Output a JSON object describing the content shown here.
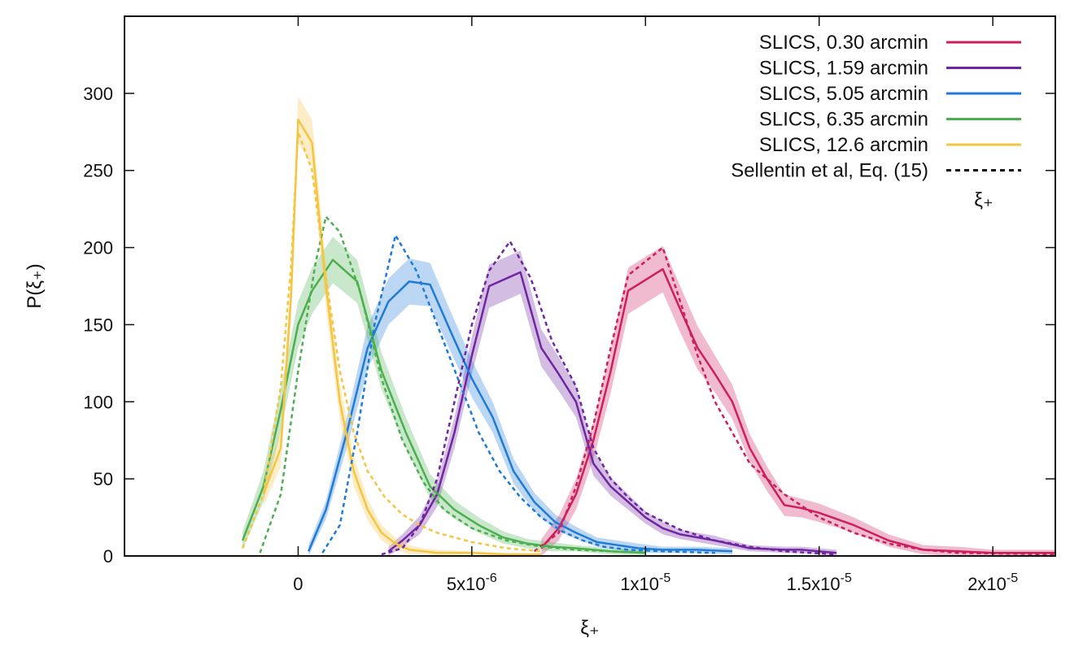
{
  "chart_data": {
    "type": "line",
    "title": "",
    "xlabel": "ξ₊",
    "ylabel": "P(ξ₊)",
    "xlim": [
      -5e-06,
      2.18e-05
    ],
    "ylim": [
      0,
      350
    ],
    "x_ticks": [
      {
        "value": 0,
        "mantissa": "0",
        "exp": ""
      },
      {
        "value": 5e-06,
        "mantissa": "5x10",
        "exp": "-6"
      },
      {
        "value": 1e-05,
        "mantissa": "1x10",
        "exp": "-5"
      },
      {
        "value": 1.5e-05,
        "mantissa": "1.5x10",
        "exp": "-5"
      },
      {
        "value": 2e-05,
        "mantissa": "2x10",
        "exp": "-5"
      }
    ],
    "y_ticks": [
      0,
      50,
      100,
      150,
      200,
      250,
      300
    ],
    "legend_position": "top-right",
    "legend_extra_label": "ξ₊",
    "series": [
      {
        "name": "SLICS, 0.30 arcmin",
        "color": "#cc1f5c",
        "x": [
          7e-06,
          7.5e-06,
          8e-06,
          8.5e-06,
          9e-06,
          9.5e-06,
          1.05e-05,
          1.1e-05,
          1.15e-05,
          1.2e-05,
          1.25e-05,
          1.3e-05,
          1.35e-05,
          1.4e-05,
          1.45e-05,
          1.5e-05,
          1.6e-05,
          1.7e-05,
          1.8e-05,
          1.9e-05,
          2e-05,
          2.18e-05
        ],
        "y": [
          5,
          18,
          40,
          75,
          120,
          172,
          186,
          160,
          135,
          118,
          100,
          70,
          50,
          33,
          31,
          28,
          20,
          10,
          4,
          3,
          2,
          2
        ],
        "band": [
          6,
          8,
          10,
          12,
          14,
          15,
          15,
          15,
          14,
          12,
          11,
          9,
          8,
          7,
          6,
          6,
          5,
          4,
          3,
          3,
          2,
          2
        ]
      },
      {
        "name": "SLICS, 1.59 arcmin",
        "color": "#7026a0",
        "x": [
          2.6e-06,
          3e-06,
          3.5e-06,
          4e-06,
          4.5e-06,
          5e-06,
          5.5e-06,
          6.4e-06,
          7e-06,
          7.5e-06,
          8e-06,
          8.5e-06,
          9e-06,
          9.5e-06,
          1e-05,
          1.05e-05,
          1.1e-05,
          1.2e-05,
          1.3e-05,
          1.4e-05,
          1.45e-05,
          1.55e-05
        ],
        "y": [
          3,
          10,
          20,
          40,
          80,
          130,
          175,
          184,
          135,
          118,
          100,
          60,
          45,
          35,
          25,
          18,
          14,
          10,
          5,
          4,
          4,
          2
        ],
        "band": [
          3,
          4,
          6,
          8,
          10,
          12,
          14,
          14,
          12,
          11,
          10,
          8,
          6,
          5,
          4,
          4,
          3,
          3,
          2,
          2,
          2,
          2
        ]
      },
      {
        "name": "SLICS, 5.05 arcmin",
        "color": "#1f7bd6",
        "x": [
          3e-07,
          8e-07,
          1.4e-06,
          2e-06,
          2.6e-06,
          3.2e-06,
          3.8e-06,
          4.4e-06,
          5e-06,
          5.6e-06,
          6.2e-06,
          6.8e-06,
          7.4e-06,
          8e-06,
          8.6e-06,
          9.2e-06,
          9.8e-06,
          1.05e-05,
          1.15e-05,
          1.25e-05
        ],
        "y": [
          3,
          30,
          80,
          135,
          165,
          178,
          176,
          145,
          115,
          90,
          55,
          35,
          22,
          15,
          9,
          7,
          5,
          4,
          4,
          3
        ],
        "band": [
          4,
          6,
          10,
          14,
          15,
          15,
          14,
          13,
          12,
          10,
          8,
          6,
          5,
          4,
          3,
          3,
          3,
          2,
          2,
          2
        ]
      },
      {
        "name": "SLICS, 6.35 arcmin",
        "color": "#4caf50",
        "x": [
          -1.6e-06,
          -1e-06,
          -5e-07,
          0,
          4e-07,
          1e-06,
          1.7e-06,
          2.4e-06,
          3.1e-06,
          3.8e-06,
          4.5e-06,
          5.2e-06,
          5.9e-06,
          6.6e-06,
          7.3e-06,
          8e-06,
          9e-06,
          1e-05
        ],
        "y": [
          10,
          45,
          95,
          150,
          172,
          192,
          178,
          120,
          80,
          45,
          30,
          20,
          12,
          8,
          6,
          5,
          3,
          2
        ],
        "band": [
          6,
          10,
          14,
          15,
          15,
          15,
          14,
          12,
          10,
          8,
          6,
          5,
          4,
          3,
          3,
          2,
          2,
          2
        ]
      },
      {
        "name": "SLICS, 12.6 arcmin",
        "color": "#f5c542",
        "x": [
          -1e-06,
          -5e-07,
          -2e-07,
          0,
          4e-07,
          8e-07,
          1.2e-06,
          1.6e-06,
          2e-06,
          2.4e-06,
          2.8e-06,
          3.2e-06,
          3.6e-06,
          4e-06,
          5e-06,
          6e-06,
          7e-06
        ],
        "y": [
          40,
          70,
          170,
          283,
          268,
          175,
          100,
          55,
          30,
          15,
          8,
          4,
          3,
          2,
          2,
          1,
          1
        ],
        "band": [
          8,
          12,
          15,
          15,
          15,
          14,
          12,
          10,
          7,
          5,
          4,
          3,
          2,
          2,
          1,
          1,
          1
        ]
      }
    ],
    "model_label": "Sellentin et al, Eq. (15)",
    "model_curves": [
      {
        "color": "#cc1f5c",
        "x": [
          6.8e-06,
          7.5e-06,
          8e-06,
          8.5e-06,
          9e-06,
          9.5e-06,
          1.05e-05,
          1.1e-05,
          1.15e-05,
          1.2e-05,
          1.25e-05,
          1.3e-05,
          1.4e-05,
          1.5e-05,
          1.6e-05,
          1.7e-05,
          1.8e-05,
          1.9e-05,
          2.18e-05
        ],
        "y": [
          3,
          15,
          45,
          85,
          135,
          182,
          200,
          165,
          130,
          100,
          80,
          60,
          40,
          25,
          15,
          8,
          4,
          2,
          1
        ]
      },
      {
        "color": "#7026a0",
        "x": [
          2.4e-06,
          3e-06,
          3.5e-06,
          4e-06,
          4.5e-06,
          5e-06,
          5.5e-06,
          6.1e-06,
          6.7e-06,
          7.3e-06,
          8e-06,
          8.5e-06,
          9e-06,
          9.5e-06,
          1e-05,
          1.1e-05,
          1.2e-05,
          1.3e-05,
          1.4e-05,
          1.55e-05
        ],
        "y": [
          1,
          5,
          20,
          50,
          100,
          150,
          185,
          204,
          180,
          140,
          110,
          70,
          50,
          38,
          28,
          17,
          10,
          6,
          3,
          1
        ]
      },
      {
        "color": "#1f7bd6",
        "x": [
          7e-07,
          1.2e-06,
          1.7e-06,
          2.2e-06,
          2.8e-06,
          3.4e-06,
          4e-06,
          4.6e-06,
          5.2e-06,
          5.8e-06,
          6.4e-06,
          7e-06,
          7.6e-06,
          8.2e-06,
          8.8e-06,
          9.5e-06,
          1.05e-05,
          1.2e-05
        ],
        "y": [
          2,
          20,
          80,
          150,
          208,
          185,
          150,
          115,
          80,
          55,
          38,
          25,
          16,
          10,
          6,
          4,
          3,
          2
        ]
      },
      {
        "color": "#4caf50",
        "x": [
          -1.1e-06,
          -5e-07,
          0,
          5e-07,
          8e-07,
          1.2e-06,
          1.8e-06,
          2.4e-06,
          3e-06,
          3.6e-06,
          4.2e-06,
          5e-06,
          6e-06,
          7e-06,
          8e-06,
          9e-06,
          1e-05
        ],
        "y": [
          2,
          40,
          120,
          190,
          220,
          210,
          170,
          115,
          75,
          48,
          30,
          18,
          10,
          6,
          4,
          3,
          2
        ]
      },
      {
        "color": "#f5c542",
        "x": [
          -1.6e-06,
          -1e-06,
          -5e-07,
          -2e-07,
          0,
          4e-07,
          8e-07,
          1.2e-06,
          1.6e-06,
          2e-06,
          2.5e-06,
          3e-06,
          3.5e-06,
          4e-06,
          5e-06,
          6e-06,
          7e-06
        ],
        "y": [
          5,
          40,
          110,
          190,
          275,
          250,
          180,
          120,
          80,
          55,
          38,
          27,
          20,
          15,
          9,
          5,
          3
        ]
      }
    ]
  }
}
